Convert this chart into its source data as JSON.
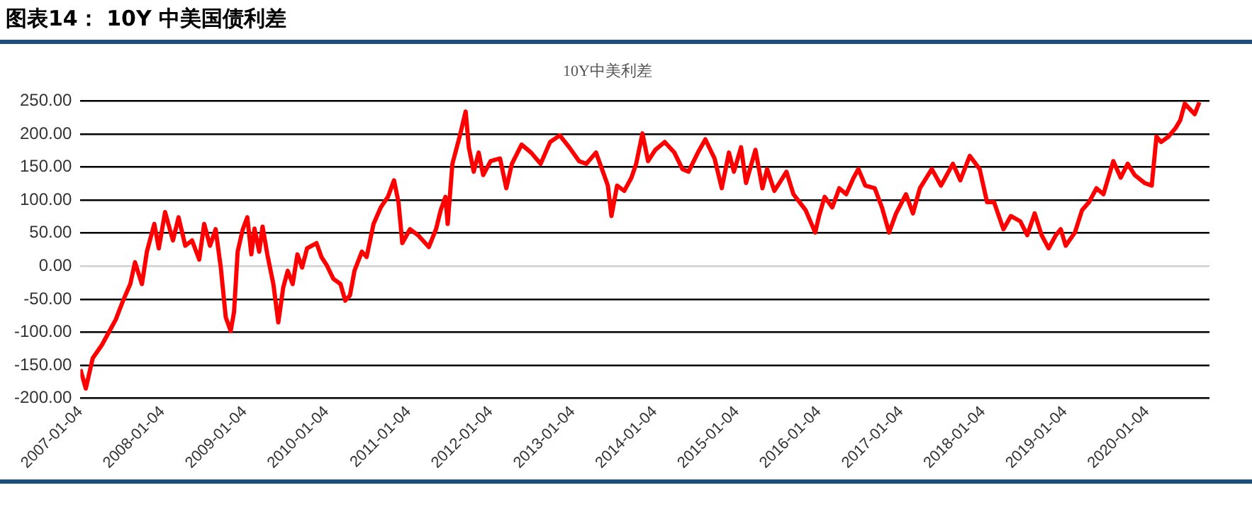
{
  "chart_data": {
    "type": "line",
    "title": "图表14： 10Y 中美国债利差",
    "subtitle": "10Y中美利差",
    "legend": false,
    "grid": "y",
    "marker": "none",
    "line_style": "solid",
    "xlim": [
      "2007-01-04",
      "2020-10-08"
    ],
    "xticks": [
      "2007-01-04",
      "2008-01-04",
      "2009-01-04",
      "2010-01-04",
      "2011-01-04",
      "2012-01-04",
      "2013-01-04",
      "2014-01-04",
      "2015-01-04",
      "2016-01-04",
      "2017-01-04",
      "2018-01-04",
      "2019-01-04",
      "2020-01-04"
    ],
    "ylim": [
      -200,
      250
    ],
    "yticks": [
      {
        "value": -200,
        "label": "-200.00"
      },
      {
        "value": -150,
        "label": "-150.00"
      },
      {
        "value": -100,
        "label": "-100.00"
      },
      {
        "value": -50,
        "label": "-50.00"
      },
      {
        "value": 0,
        "label": "0.00"
      },
      {
        "value": 50,
        "label": "50.00"
      },
      {
        "value": 100,
        "label": "100.00"
      },
      {
        "value": 150,
        "label": "150.00"
      },
      {
        "value": 200,
        "label": "200.00"
      },
      {
        "value": 250,
        "label": "250.00"
      }
    ],
    "series": [
      {
        "color": "#ff0000",
        "x": [
          "2007-01-04",
          "2007-01-28",
          "2007-02-28",
          "2007-04-10",
          "2007-05-20",
          "2007-06-10",
          "2007-07-13",
          "2007-08-14",
          "2007-09-04",
          "2007-10-05",
          "2007-10-27",
          "2007-11-29",
          "2007-12-19",
          "2008-01-16",
          "2008-02-20",
          "2008-03-16",
          "2008-04-15",
          "2008-05-15",
          "2008-06-16",
          "2008-07-08",
          "2008-08-03",
          "2008-08-28",
          "2008-09-20",
          "2008-10-12",
          "2008-11-03",
          "2008-11-18",
          "2008-12-04",
          "2008-12-27",
          "2009-01-16",
          "2009-02-03",
          "2009-02-17",
          "2009-03-10",
          "2009-03-25",
          "2009-04-15",
          "2009-05-12",
          "2009-06-03",
          "2009-06-25",
          "2009-07-15",
          "2009-08-06",
          "2009-08-27",
          "2009-09-17",
          "2009-10-09",
          "2009-11-20",
          "2009-12-12",
          "2010-01-04",
          "2010-02-03",
          "2010-03-07",
          "2010-03-28",
          "2010-04-18",
          "2010-05-08",
          "2010-06-10",
          "2010-07-01",
          "2010-08-01",
          "2010-09-02",
          "2010-10-04",
          "2010-10-31",
          "2010-11-20",
          "2010-12-07",
          "2011-01-10",
          "2011-02-15",
          "2011-04-04",
          "2011-05-06",
          "2011-05-27",
          "2011-06-17",
          "2011-06-27",
          "2011-07-18",
          "2011-08-19",
          "2011-09-15",
          "2011-09-29",
          "2011-10-21",
          "2011-11-12",
          "2011-12-02",
          "2012-01-04",
          "2012-02-15",
          "2012-03-14",
          "2012-04-08",
          "2012-05-21",
          "2012-07-02",
          "2012-08-14",
          "2012-09-25",
          "2012-11-07",
          "2012-12-19",
          "2013-02-01",
          "2013-03-05",
          "2013-04-17",
          "2013-05-18",
          "2013-06-09",
          "2013-06-25",
          "2013-07-20",
          "2013-08-21",
          "2013-09-22",
          "2013-10-13",
          "2013-11-10",
          "2013-12-05",
          "2014-01-06",
          "2014-02-17",
          "2014-04-01",
          "2014-05-07",
          "2014-06-03",
          "2014-07-15",
          "2014-08-17",
          "2014-09-27",
          "2014-10-29",
          "2014-11-30",
          "2014-12-22",
          "2015-01-23",
          "2015-02-14",
          "2015-03-28",
          "2015-04-28",
          "2015-05-19",
          "2015-06-20",
          "2015-07-13",
          "2015-08-13",
          "2015-09-13",
          "2015-11-06",
          "2015-12-19",
          "2016-01-05",
          "2016-01-30",
          "2016-03-04",
          "2016-04-04",
          "2016-05-05",
          "2016-06-07",
          "2016-06-28",
          "2016-07-29",
          "2016-09-09",
          "2016-10-11",
          "2016-11-12",
          "2016-12-13",
          "2017-01-26",
          "2017-02-26",
          "2017-03-29",
          "2017-05-21",
          "2017-07-01",
          "2017-08-23",
          "2017-09-25",
          "2017-11-06",
          "2017-12-20",
          "2018-01-22",
          "2018-02-22",
          "2018-04-05",
          "2018-05-08",
          "2018-06-19",
          "2018-07-20",
          "2018-08-22",
          "2018-09-22",
          "2018-10-23",
          "2018-11-24",
          "2018-12-16",
          "2019-01-07",
          "2019-02-17",
          "2019-03-21",
          "2019-04-21",
          "2019-05-24",
          "2019-06-24",
          "2019-08-07",
          "2019-09-09",
          "2019-10-10",
          "2019-11-10",
          "2019-12-24",
          "2020-01-25",
          "2020-02-15",
          "2020-03-07",
          "2020-04-08",
          "2020-05-10",
          "2020-05-31",
          "2020-06-20",
          "2020-07-12",
          "2020-08-03",
          "2020-08-24"
        ],
        "values": [
          -156,
          -185,
          -139,
          -119,
          -94,
          -81,
          -52,
          -27,
          6,
          -27,
          22,
          64,
          27,
          82,
          39,
          74,
          31,
          39,
          10,
          64,
          31,
          56,
          -2,
          -77,
          -98,
          -69,
          22,
          56,
          74,
          18,
          57,
          22,
          60,
          18,
          -27,
          -85,
          -32,
          -7,
          -27,
          18,
          -2,
          27,
          35,
          14,
          2,
          -19,
          -27,
          -52,
          -44,
          -7,
          22,
          14,
          64,
          89,
          105,
          130,
          97,
          35,
          56,
          47,
          29,
          56,
          85,
          105,
          64,
          155,
          196,
          234,
          180,
          143,
          172,
          138,
          159,
          163,
          118,
          155,
          184,
          172,
          155,
          188,
          198,
          180,
          159,
          155,
          172,
          143,
          122,
          76,
          122,
          114,
          134,
          155,
          201,
          159,
          176,
          188,
          172,
          147,
          143,
          172,
          192,
          163,
          118,
          172,
          143,
          180,
          126,
          176,
          118,
          147,
          114,
          126,
          143,
          109,
          85,
          51,
          76,
          105,
          89,
          118,
          109,
          134,
          147,
          122,
          118,
          89,
          51,
          80,
          109,
          80,
          118,
          147,
          122,
          155,
          130,
          167,
          147,
          97,
          97,
          56,
          76,
          68,
          47,
          80,
          47,
          27,
          47,
          56,
          31,
          51,
          85,
          97,
          118,
          109,
          159,
          134,
          155,
          138,
          126,
          122,
          196,
          188,
          196,
          209,
          221,
          246,
          238,
          230,
          248
        ]
      }
    ]
  }
}
